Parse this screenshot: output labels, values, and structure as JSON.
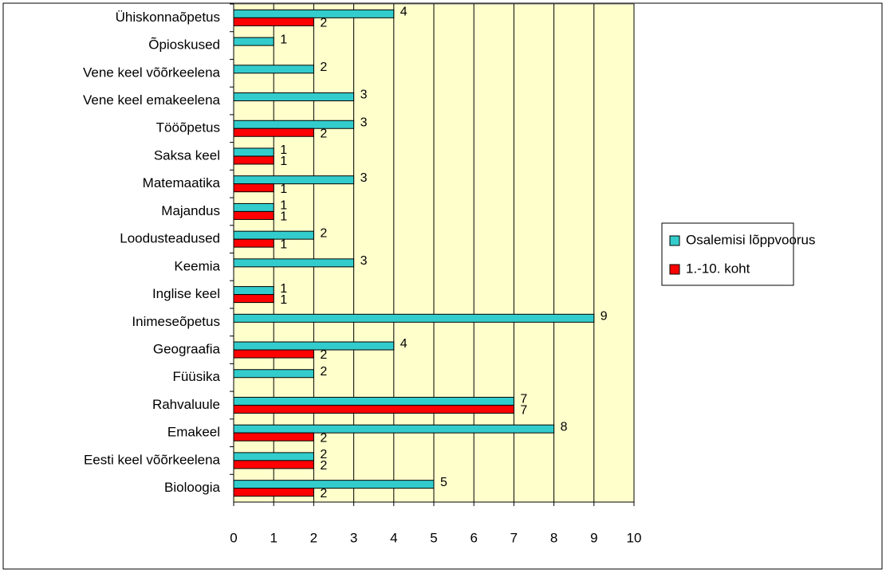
{
  "chart_data": {
    "type": "bar",
    "orientation": "horizontal",
    "categories": [
      "Ühiskonnaõpetus",
      "Õpioskused",
      "Vene keel võõrkeelena",
      "Vene keel emakeelena",
      "Tööõpetus",
      "Saksa keel",
      "Matemaatika",
      "Majandus",
      "Loodusteadused",
      "Keemia",
      "Inglise keel",
      "Inimeseõpetus",
      "Geograafia",
      "Füüsika",
      "Rahvaluule",
      "Emakeel",
      "Eesti keel võõrkeelena",
      "Bioloogia"
    ],
    "series": [
      {
        "name": "Osalemisi lõppvoorus",
        "color": "#33cccc",
        "values": [
          4,
          1,
          2,
          3,
          3,
          1,
          3,
          1,
          2,
          3,
          1,
          9,
          4,
          2,
          7,
          8,
          2,
          5
        ]
      },
      {
        "name": "1.-10. koht",
        "color": "#ff0000",
        "values": [
          2,
          null,
          null,
          null,
          2,
          1,
          1,
          1,
          1,
          null,
          1,
          null,
          2,
          null,
          7,
          2,
          2,
          2
        ]
      }
    ],
    "xlim": [
      0,
      10
    ],
    "xticks": [
      0,
      1,
      2,
      3,
      4,
      5,
      6,
      7,
      8,
      9,
      10
    ],
    "grid": true,
    "legend": "right",
    "plot_background": "#ffffcc"
  }
}
